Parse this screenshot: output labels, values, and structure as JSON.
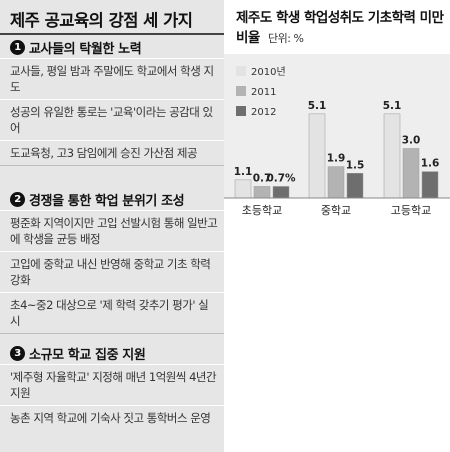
{
  "left_panel": {
    "title": "제주 공교육의 강점 세 가지",
    "sections": [
      {
        "number": "1",
        "heading": "교사들의 탁월한 노력",
        "items": [
          "교사들, 평일 밤과 주말에도 학교에서 학생 지도",
          "성공의 유일한 통로는 '교육'이라는 공감대 있어",
          "도교육청, 고3 담임에게 승진 가산점 제공"
        ]
      },
      {
        "number": "2",
        "heading": "경쟁을 통한 학업 분위기 조성",
        "items": [
          "평준화 지역이지만 고입 선발시험 통해 일반고에 학생을 균등 배정",
          "고입에 중학교 내신 반영해 중학교 기초 학력 강화",
          "초4~중2 대상으로 '제 학력 갖추기 평가' 실시"
        ]
      },
      {
        "number": "3",
        "heading": "소규모 학교 집중 지원",
        "items": [
          "'제주형 자율학교' 지정해 매년 1억원씩 4년간 지원",
          "농촌 지역 학교에 기숙사 짓고 통학버스 운영"
        ]
      }
    ]
  },
  "chart_data": {
    "type": "bar",
    "title": "제주도 학생 학업성취도 기초학력 미만 비율",
    "unit": "단위: %",
    "categories": [
      "초등학교",
      "중학교",
      "고등학교"
    ],
    "series": [
      {
        "name": "2010년",
        "values": [
          1.1,
          5.1,
          5.1
        ],
        "value_labels": [
          "1.1",
          "5.1",
          "5.1"
        ],
        "color": "#e3e3e3"
      },
      {
        "name": "2011",
        "values": [
          0.7,
          1.9,
          3.0
        ],
        "value_labels": [
          "0.7",
          "1.9",
          "3.0"
        ],
        "color": "#b3b3b3"
      },
      {
        "name": "2012",
        "values": [
          0.7,
          1.5,
          1.6
        ],
        "value_labels": [
          "0.7%",
          "1.5",
          "1.6"
        ],
        "color": "#6e6e6e"
      }
    ],
    "ylim": [
      0,
      6
    ],
    "legend_position": "top-left, inside plot"
  }
}
